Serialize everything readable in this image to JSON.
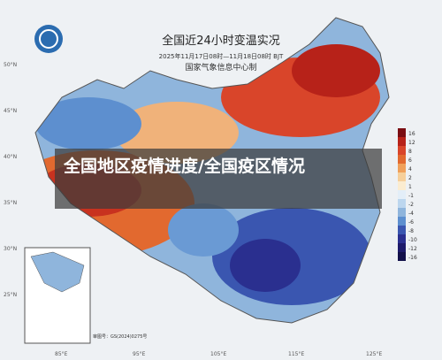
{
  "header": {
    "title": "全国近24小时变温实况",
    "time": "2025年11月17日08时—11月18日08时 BJT",
    "agency": "国家气象信息中心制"
  },
  "overlay": {
    "text": "全国地区疫情进度/全国疫区情况"
  },
  "legend": {
    "labels": [
      "16",
      "12",
      "8",
      "6",
      "4",
      "2",
      "1",
      "-1",
      "-2",
      "-4",
      "-6",
      "-8",
      "-10",
      "-12",
      "-16"
    ]
  },
  "latitudes": [
    "50°N",
    "45°N",
    "40°N",
    "35°N",
    "30°N",
    "25°N"
  ],
  "longitudes": [
    "85°E",
    "95°E",
    "105°E",
    "115°E",
    "125°E"
  ],
  "inset": {
    "note": "审图号：GS(2024)0275号"
  }
}
